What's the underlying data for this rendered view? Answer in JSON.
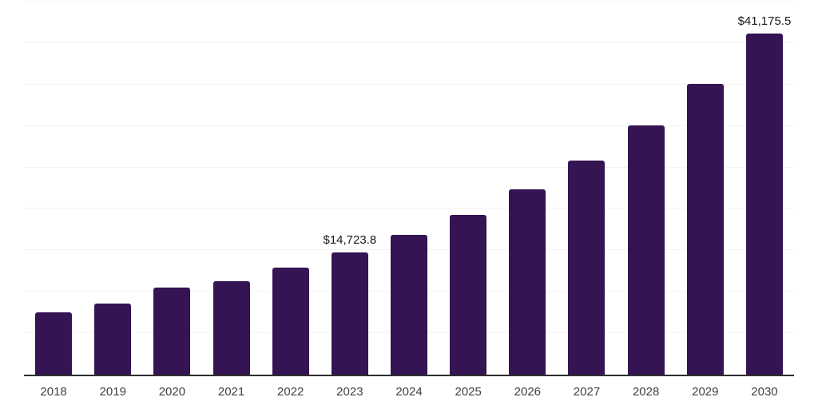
{
  "chart_data": {
    "type": "bar",
    "title": "",
    "xlabel": "",
    "ylabel": "",
    "categories": [
      "2018",
      "2019",
      "2020",
      "2021",
      "2022",
      "2023",
      "2024",
      "2025",
      "2026",
      "2027",
      "2028",
      "2029",
      "2030"
    ],
    "values": [
      7500,
      8550,
      10500,
      11270,
      12900,
      14723.8,
      16850,
      19270,
      22400,
      25850,
      30060,
      35040,
      41175.5
    ],
    "data_labels": {
      "2023": "$14,723.8",
      "2030": "$41,175.5"
    },
    "ylim": [
      0,
      45000
    ],
    "gridline_step": 5000,
    "grid": "horizontal",
    "y_axis_tick_labels": "none",
    "legend": "none"
  },
  "colors": {
    "bar": "#341452",
    "gridline": "#f3f3f3",
    "axis_line": "#2e2e2e",
    "tick_label": "#404040",
    "data_label": "#1a1a1a",
    "background": "#ffffff"
  }
}
